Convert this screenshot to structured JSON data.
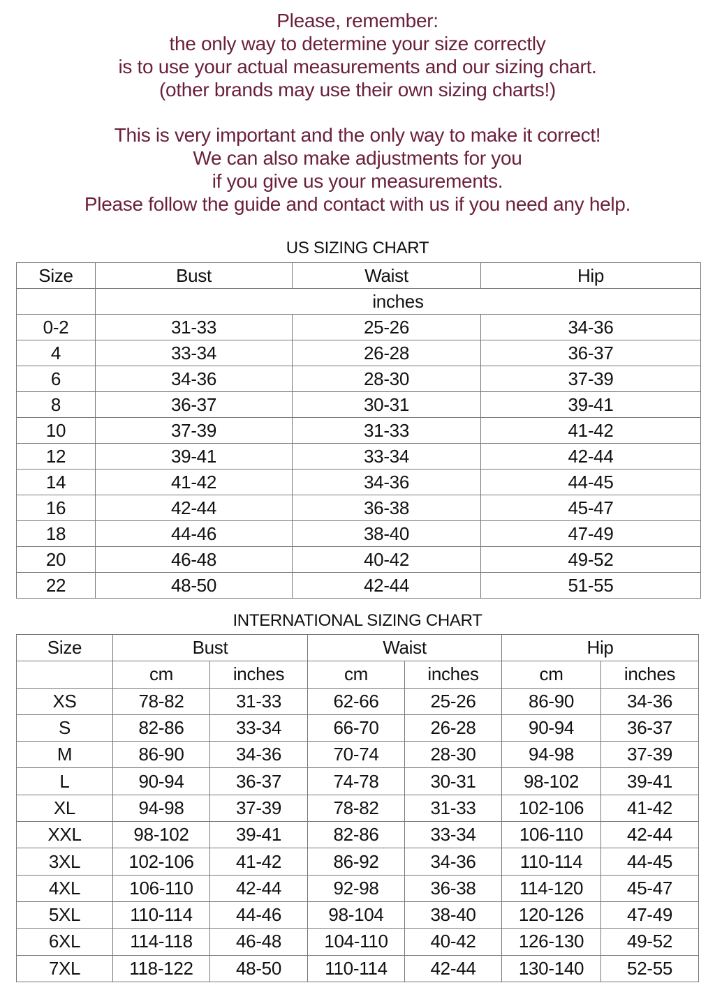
{
  "notes": {
    "paragraph1": [
      "Please, remember:",
      "the only way to determine your size correctly",
      "is to use your actual measurements and our sizing chart.",
      "(other brands may use their own sizing charts!)"
    ],
    "paragraph2": [
      "This is very important and the only way to make it correct!",
      "We can also make adjustments for you",
      "if you give us your measurements.",
      "Please follow the guide and contact with us if you need any help."
    ],
    "text_color": "#6a1f3c"
  },
  "us_chart": {
    "title": "US SIZING CHART",
    "headers": [
      "Size",
      "Bust",
      "Waist",
      "Hip"
    ],
    "unit": "inches",
    "rows": [
      [
        "0-2",
        "31-33",
        "25-26",
        "34-36"
      ],
      [
        "4",
        "33-34",
        "26-28",
        "36-37"
      ],
      [
        "6",
        "34-36",
        "28-30",
        "37-39"
      ],
      [
        "8",
        "36-37",
        "30-31",
        "39-41"
      ],
      [
        "10",
        "37-39",
        "31-33",
        "41-42"
      ],
      [
        "12",
        "39-41",
        "33-34",
        "42-44"
      ],
      [
        "14",
        "41-42",
        "34-36",
        "44-45"
      ],
      [
        "16",
        "42-44",
        "36-38",
        "45-47"
      ],
      [
        "18",
        "44-46",
        "38-40",
        "47-49"
      ],
      [
        "20",
        "46-48",
        "40-42",
        "49-52"
      ],
      [
        "22",
        "48-50",
        "42-44",
        "51-55"
      ]
    ]
  },
  "intl_chart": {
    "title": "INTERNATIONAL SIZING CHART",
    "headers": [
      "Size",
      "Bust",
      "Waist",
      "Hip"
    ],
    "subheaders": [
      "cm",
      "inches",
      "cm",
      "inches",
      "cm",
      "inches"
    ],
    "rows": [
      [
        "XS",
        "78-82",
        "31-33",
        "62-66",
        "25-26",
        "86-90",
        "34-36"
      ],
      [
        "S",
        "82-86",
        "33-34",
        "66-70",
        "26-28",
        "90-94",
        "36-37"
      ],
      [
        "M",
        "86-90",
        "34-36",
        "70-74",
        "28-30",
        "94-98",
        "37-39"
      ],
      [
        "L",
        "90-94",
        "36-37",
        "74-78",
        "30-31",
        "98-102",
        "39-41"
      ],
      [
        "XL",
        "94-98",
        "37-39",
        "78-82",
        "31-33",
        "102-106",
        "41-42"
      ],
      [
        "XXL",
        "98-102",
        "39-41",
        "82-86",
        "33-34",
        "106-110",
        "42-44"
      ],
      [
        "3XL",
        "102-106",
        "41-42",
        "86-92",
        "34-36",
        "110-114",
        "44-45"
      ],
      [
        "4XL",
        "106-110",
        "42-44",
        "92-98",
        "36-38",
        "114-120",
        "45-47"
      ],
      [
        "5XL",
        "110-114",
        "44-46",
        "98-104",
        "38-40",
        "120-126",
        "47-49"
      ],
      [
        "6XL",
        "114-118",
        "46-48",
        "104-110",
        "40-42",
        "126-130",
        "49-52"
      ],
      [
        "7XL",
        "118-122",
        "48-50",
        "110-114",
        "42-44",
        "130-140",
        "52-55"
      ]
    ]
  }
}
